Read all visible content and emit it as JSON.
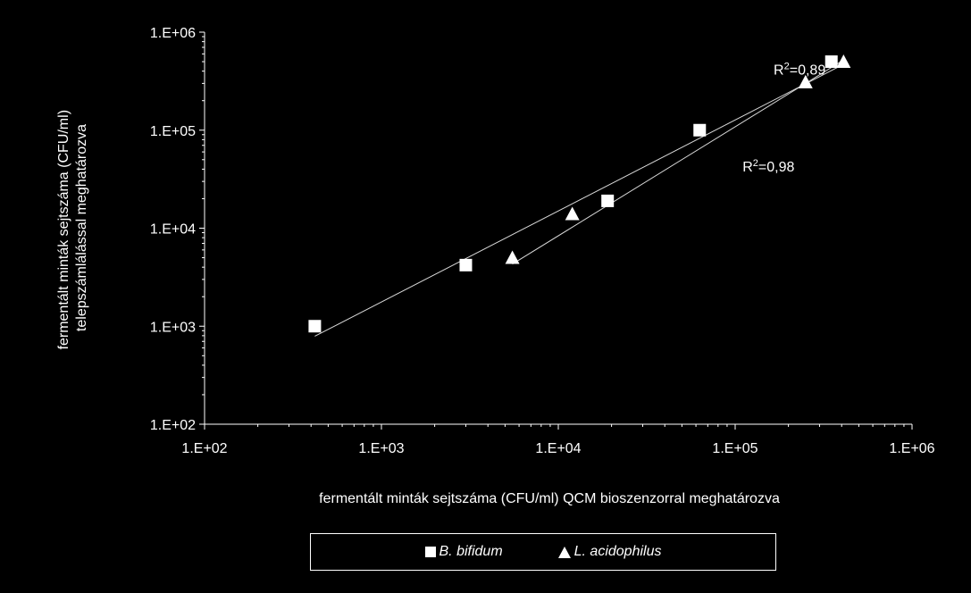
{
  "chart_data": {
    "type": "scatter",
    "xscale": "log",
    "yscale": "log",
    "xlim": [
      100,
      1000000
    ],
    "ylim": [
      100,
      1000000
    ],
    "xticks": [
      "1.E+02",
      "1.E+03",
      "1.E+04",
      "1.E+05",
      "1.E+06"
    ],
    "yticks": [
      "1.E+02",
      "1.E+03",
      "1.E+04",
      "1.E+05",
      "1.E+06"
    ],
    "xlabel": "fermentált minták sejtszáma (CFU/ml) QCM bioszenzorral meghatározva",
    "ylabel_lines": [
      "fermentált minták sejtszáma (CFU/ml)",
      "telepszámlálással meghatározva"
    ],
    "grid": false,
    "legend_position": "bottom",
    "series": [
      {
        "name": "B. bifidum",
        "marker": "square",
        "color": "#ffffff",
        "x": [
          420,
          3000,
          19000,
          63000,
          350000
        ],
        "y": [
          1000,
          4200,
          19000,
          100000,
          500000
        ],
        "trendline": {
          "x": [
            420,
            400000
          ],
          "y": [
            790,
            460000
          ]
        },
        "r2_label": "R",
        "r2_value": "=0,89",
        "r2_anchor": {
          "x": 165000,
          "y": 370000
        }
      },
      {
        "name": "L. acidophilus",
        "marker": "triangle",
        "color": "#ffffff",
        "x": [
          5500,
          12000,
          250000,
          410000
        ],
        "y": [
          5000,
          14000,
          310000,
          500000
        ],
        "trendline": {
          "x": [
            5500,
            410000
          ],
          "y": [
            4300,
            520000
          ]
        },
        "r2_label": "R",
        "r2_value": "=0,98",
        "r2_anchor": {
          "x": 110000,
          "y": 38000
        }
      }
    ]
  }
}
